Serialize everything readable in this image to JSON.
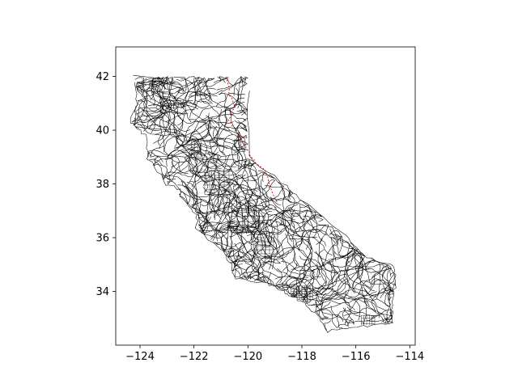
{
  "chart_data": {
    "type": "map",
    "title": "",
    "xlabel": "",
    "ylabel": "",
    "xlim": [
      -124.9,
      -113.8
    ],
    "ylim": [
      32.0,
      43.1
    ],
    "xticks": [
      -124,
      -122,
      -120,
      -118,
      -116,
      -114
    ],
    "yticks": [
      34,
      36,
      38,
      40,
      42
    ],
    "xtick_labels": [
      "−124",
      "−122",
      "−120",
      "−118",
      "−116",
      "−114"
    ],
    "ytick_labels": [
      "34",
      "36",
      "38",
      "40",
      "42"
    ],
    "layers": [
      {
        "name": "road network",
        "color": "#000000"
      },
      {
        "name": "highlighted route",
        "color": "#d40000"
      }
    ]
  }
}
